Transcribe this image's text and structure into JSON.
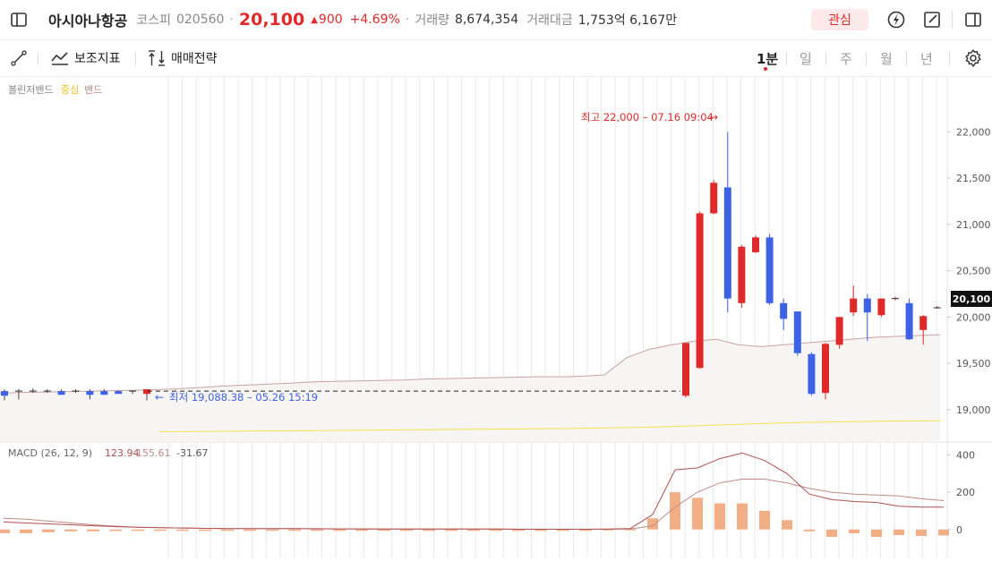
{
  "header": {
    "stock_name": "아시아나항공",
    "market": "코스피",
    "code": "020560",
    "price": "20,100",
    "change": "900",
    "change_pct": "+4.69%",
    "volume_label": "거래량",
    "volume": "8,674,354",
    "amount_label": "거래대금",
    "amount": "1,753억 6,167만",
    "watch_label": "관심"
  },
  "toolbar": {
    "indicator_label": "보조지표",
    "strategy_label": "매매전략",
    "periods": [
      "1분",
      "일",
      "주",
      "월",
      "년"
    ],
    "active_period": "1분"
  },
  "colors": {
    "up": "#e02a2a",
    "down": "#3d62e6",
    "bb_mid": "#c9a3a3",
    "bb_lower": "#f5e050",
    "macd_line": "#b55050",
    "signal_line": "#c08a86",
    "hist": "#f0a070"
  },
  "chart_data": [
    {
      "type": "candlestick",
      "indicator_label": "볼린저밴드",
      "indicator_mid_label": "중심",
      "indicator_band_label": "밴드",
      "high_annotation": "최고 22,000 – 07.16 09:04",
      "low_annotation": "최저 19,088.38 – 05.26 15:19",
      "current_price_label": "20,100",
      "ylim": [
        18650,
        22400
      ],
      "yticks": [
        19000,
        19500,
        20000,
        20500,
        21000,
        21500,
        22000
      ],
      "ytick_labels": [
        "19,000",
        "19,500",
        "20,000",
        "20,500",
        "21,000",
        "21,500",
        "22,000"
      ],
      "candles": [
        {
          "o": 19200,
          "h": 19220,
          "l": 19100,
          "c": 19150
        },
        {
          "o": 19200,
          "h": 19220,
          "l": 19110,
          "c": 19200
        },
        {
          "o": 19200,
          "h": 19230,
          "l": 19180,
          "c": 19200
        },
        {
          "o": 19200,
          "h": 19220,
          "l": 19180,
          "c": 19200
        },
        {
          "o": 19200,
          "h": 19220,
          "l": 19160,
          "c": 19160
        },
        {
          "o": 19200,
          "h": 19220,
          "l": 19180,
          "c": 19200
        },
        {
          "o": 19200,
          "h": 19220,
          "l": 19110,
          "c": 19160
        },
        {
          "o": 19200,
          "h": 19220,
          "l": 19160,
          "c": 19160
        },
        {
          "o": 19200,
          "h": 19210,
          "l": 19170,
          "c": 19170
        },
        {
          "o": 19200,
          "h": 19200,
          "l": 19170,
          "c": 19200
        },
        {
          "o": 19170,
          "h": 19220,
          "l": 19100,
          "c": 19220
        },
        {
          "o": 19150,
          "h": 19720,
          "l": 19130,
          "c": 19720
        },
        {
          "o": 19450,
          "h": 21140,
          "l": 19440,
          "c": 21120
        },
        {
          "o": 21120,
          "h": 21480,
          "l": 21110,
          "c": 21450
        },
        {
          "o": 21400,
          "h": 22000,
          "l": 20050,
          "c": 20200
        },
        {
          "o": 20150,
          "h": 20780,
          "l": 20100,
          "c": 20760
        },
        {
          "o": 20700,
          "h": 20880,
          "l": 20690,
          "c": 20860
        },
        {
          "o": 20860,
          "h": 20900,
          "l": 20130,
          "c": 20150
        },
        {
          "o": 20150,
          "h": 20200,
          "l": 19860,
          "c": 19980
        },
        {
          "o": 20060,
          "h": 20060,
          "l": 19580,
          "c": 19610
        },
        {
          "o": 19600,
          "h": 19620,
          "l": 19150,
          "c": 19170
        },
        {
          "o": 19180,
          "h": 19720,
          "l": 19110,
          "c": 19710
        },
        {
          "o": 19700,
          "h": 20000,
          "l": 19660,
          "c": 20000
        },
        {
          "o": 20050,
          "h": 20340,
          "l": 20010,
          "c": 20200
        },
        {
          "o": 20200,
          "h": 20250,
          "l": 19740,
          "c": 20050
        },
        {
          "o": 20020,
          "h": 20200,
          "l": 20000,
          "c": 20200
        },
        {
          "o": 20200,
          "h": 20220,
          "l": 20180,
          "c": 20200
        },
        {
          "o": 20150,
          "h": 20200,
          "l": 19750,
          "c": 19760
        },
        {
          "o": 19860,
          "h": 20020,
          "l": 19700,
          "c": 20010
        },
        {
          "o": 20100,
          "h": 20120,
          "l": 20090,
          "c": 20100
        }
      ],
      "bb_mid": [
        19180,
        19185,
        19190,
        19195,
        19200,
        19205,
        19210,
        19215,
        19225,
        19240,
        19255,
        19265,
        19275,
        19285,
        19300,
        19305,
        19310,
        19315,
        19320,
        19330,
        19335,
        19340,
        19345,
        19350,
        19355,
        19355,
        19360,
        19375,
        19560,
        19650,
        19700,
        19740,
        19760,
        19700,
        19680,
        19700,
        19720,
        19740,
        19760,
        19780,
        19790,
        19800,
        19810
      ],
      "bb_lower": [
        18760,
        18762,
        18765,
        18768,
        18770,
        18772,
        18775,
        18778,
        18780,
        18782,
        18785,
        18788,
        18790,
        18792,
        18795,
        18800,
        18805,
        18810,
        18820,
        18830,
        18840,
        18850,
        18860,
        18865,
        18870,
        18875,
        18878,
        18880
      ]
    },
    {
      "type": "macd",
      "label": "MACD (26, 12, 9)",
      "macd": "123.94",
      "signal": "155.61",
      "histogram": "-31.67",
      "ylim": [
        -150,
        450
      ],
      "yticks": [
        0,
        200,
        400
      ],
      "ytick_labels": [
        "0",
        "200",
        "400"
      ],
      "macd_line": [
        40,
        35,
        30,
        25,
        20,
        15,
        12,
        10,
        8,
        6,
        5,
        5,
        5,
        5,
        4,
        3,
        3,
        2,
        2,
        2,
        2,
        2,
        2,
        1,
        1,
        1,
        1,
        2,
        5,
        80,
        320,
        330,
        380,
        410,
        370,
        300,
        190,
        160,
        150,
        145,
        125,
        120,
        120
      ],
      "signal_line": [
        60,
        55,
        45,
        35,
        25,
        18,
        12,
        10,
        8,
        6,
        5,
        4,
        4,
        4,
        3,
        3,
        2,
        2,
        2,
        2,
        2,
        2,
        2,
        1,
        1,
        1,
        1,
        1,
        2,
        20,
        120,
        200,
        250,
        270,
        270,
        250,
        220,
        200,
        190,
        185,
        180,
        165,
        155
      ],
      "hist": [
        -20,
        -20,
        -15,
        -10,
        -10,
        -8,
        -5,
        -3,
        -3,
        -2,
        -2,
        -2,
        -2,
        -2,
        -2,
        -2,
        -2,
        -2,
        -2,
        -2,
        -2,
        -2,
        -2,
        -2,
        -2,
        -2,
        -2,
        2,
        3,
        60,
        200,
        170,
        140,
        140,
        100,
        50,
        -10,
        -40,
        -20,
        -40,
        -30,
        -35,
        -32
      ]
    }
  ]
}
